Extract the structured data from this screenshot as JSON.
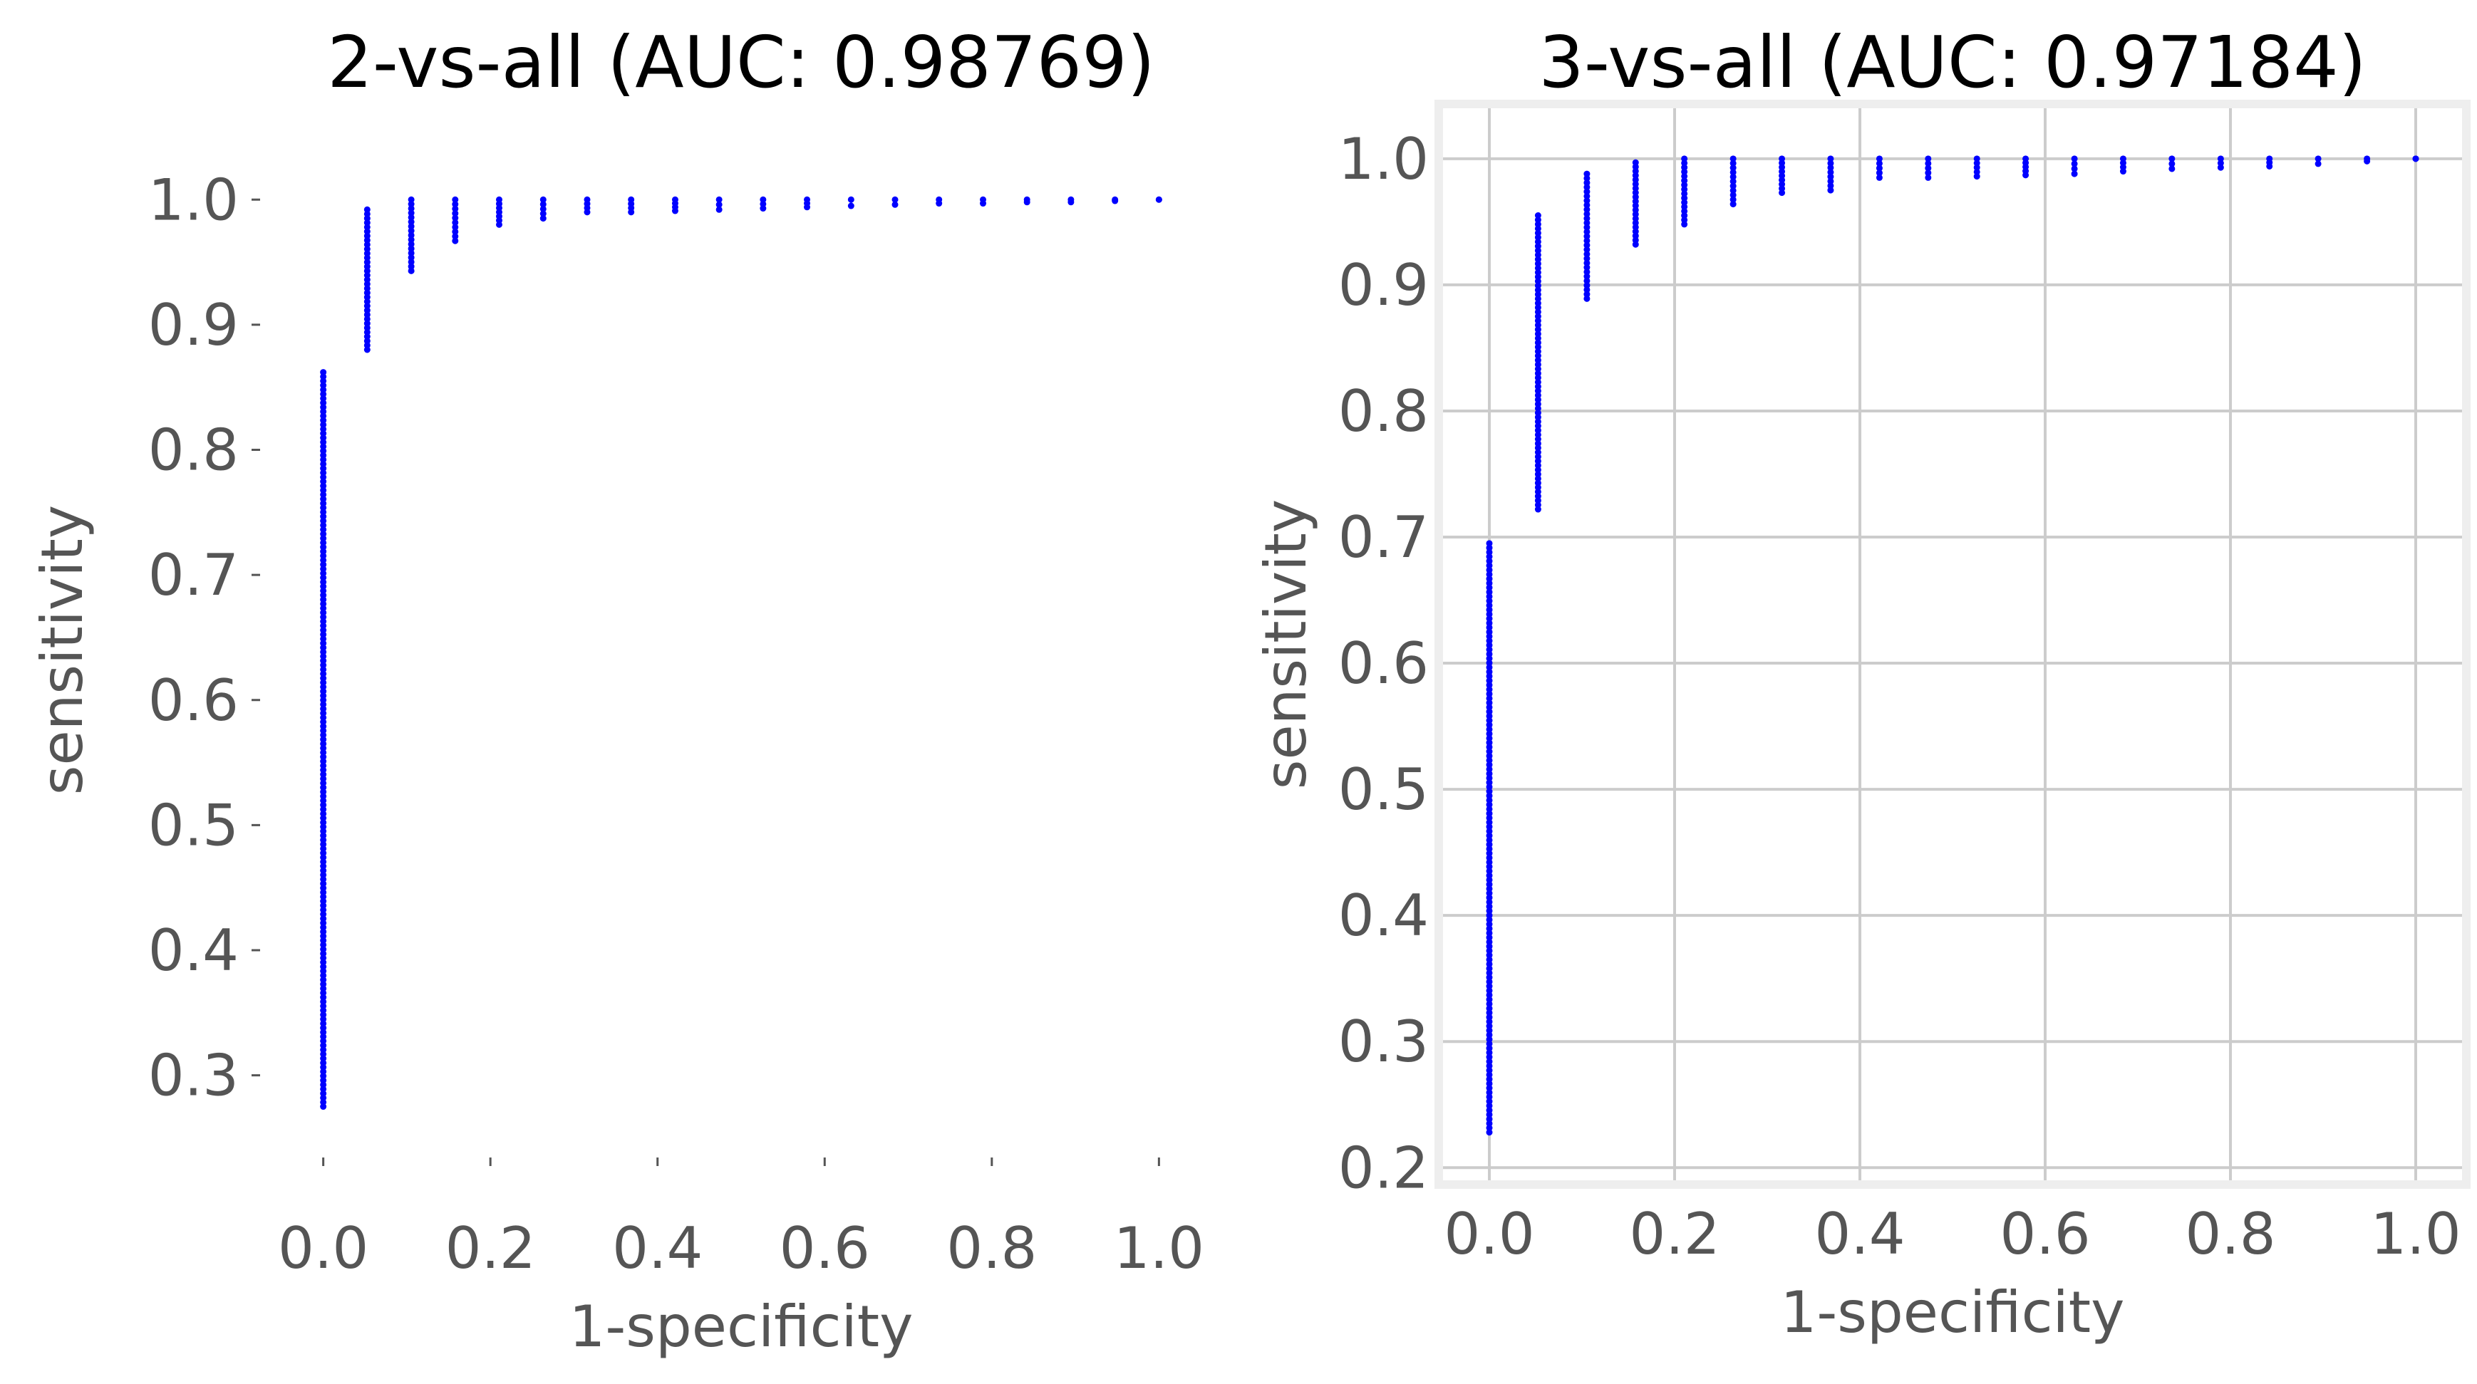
{
  "chart_data": [
    {
      "type": "scatter",
      "title": "2-vs-all (AUC: 0.98769)",
      "xlabel": "1-specificity",
      "ylabel": "sensitivity",
      "xlim": [
        -0.05,
        1.05
      ],
      "ylim": [
        0.24,
        1.04
      ],
      "xticks": [
        "0.0",
        "0.2",
        "0.4",
        "0.6",
        "0.8",
        "1.0"
      ],
      "yticks": [
        "0.3",
        "0.4",
        "0.5",
        "0.6",
        "0.7",
        "0.8",
        "0.9",
        "1.0"
      ],
      "grid": false,
      "point_color": "#0000ff",
      "series": [
        {
          "x": [
            0.0,
            0.0526,
            0.1053,
            0.1579,
            0.2105,
            0.2632,
            0.3158,
            0.3684,
            0.4211,
            0.4737,
            0.5263,
            0.5789,
            0.6316,
            0.6842,
            0.7368,
            0.7895,
            0.8421,
            0.8947,
            0.9474,
            1.0
          ],
          "y_min": [
            0.275,
            0.88,
            0.943,
            0.967,
            0.98,
            0.985,
            0.99,
            0.99,
            0.991,
            0.992,
            0.993,
            0.994,
            0.995,
            0.996,
            0.997,
            0.997,
            0.998,
            0.998,
            0.999,
            1.0
          ],
          "y_max": [
            0.862,
            0.992,
            1.0,
            1.0,
            1.0,
            1.0,
            1.0,
            1.0,
            1.0,
            1.0,
            1.0,
            1.0,
            1.0,
            1.0,
            1.0,
            1.0,
            1.0,
            1.0,
            1.0,
            1.0
          ]
        }
      ]
    },
    {
      "type": "scatter",
      "title": "3-vs-all (AUC: 0.97184)",
      "xlabel": "1-specificity",
      "ylabel": "sensitivity",
      "xlim": [
        -0.05,
        1.05
      ],
      "ylim": [
        0.19,
        1.04
      ],
      "xticks": [
        "0.0",
        "0.2",
        "0.4",
        "0.6",
        "0.8",
        "1.0"
      ],
      "yticks": [
        "0.2",
        "0.3",
        "0.4",
        "0.5",
        "0.6",
        "0.7",
        "0.8",
        "0.9",
        "1.0"
      ],
      "grid": true,
      "point_color": "#0000ff",
      "series": [
        {
          "x": [
            0.0,
            0.0526,
            0.1053,
            0.1579,
            0.2105,
            0.2632,
            0.3158,
            0.3684,
            0.4211,
            0.4737,
            0.5263,
            0.5789,
            0.6316,
            0.6842,
            0.7368,
            0.7895,
            0.8421,
            0.8947,
            0.9474,
            1.0
          ],
          "y_min": [
            0.228,
            0.722,
            0.889,
            0.932,
            0.948,
            0.964,
            0.973,
            0.975,
            0.985,
            0.985,
            0.986,
            0.987,
            0.988,
            0.99,
            0.992,
            0.993,
            0.994,
            0.996,
            0.998,
            1.0
          ],
          "y_max": [
            0.695,
            0.955,
            0.988,
            0.997,
            1.0,
            1.0,
            1.0,
            1.0,
            1.0,
            1.0,
            1.0,
            1.0,
            1.0,
            1.0,
            1.0,
            1.0,
            1.0,
            1.0,
            1.0,
            1.0
          ]
        }
      ]
    }
  ]
}
